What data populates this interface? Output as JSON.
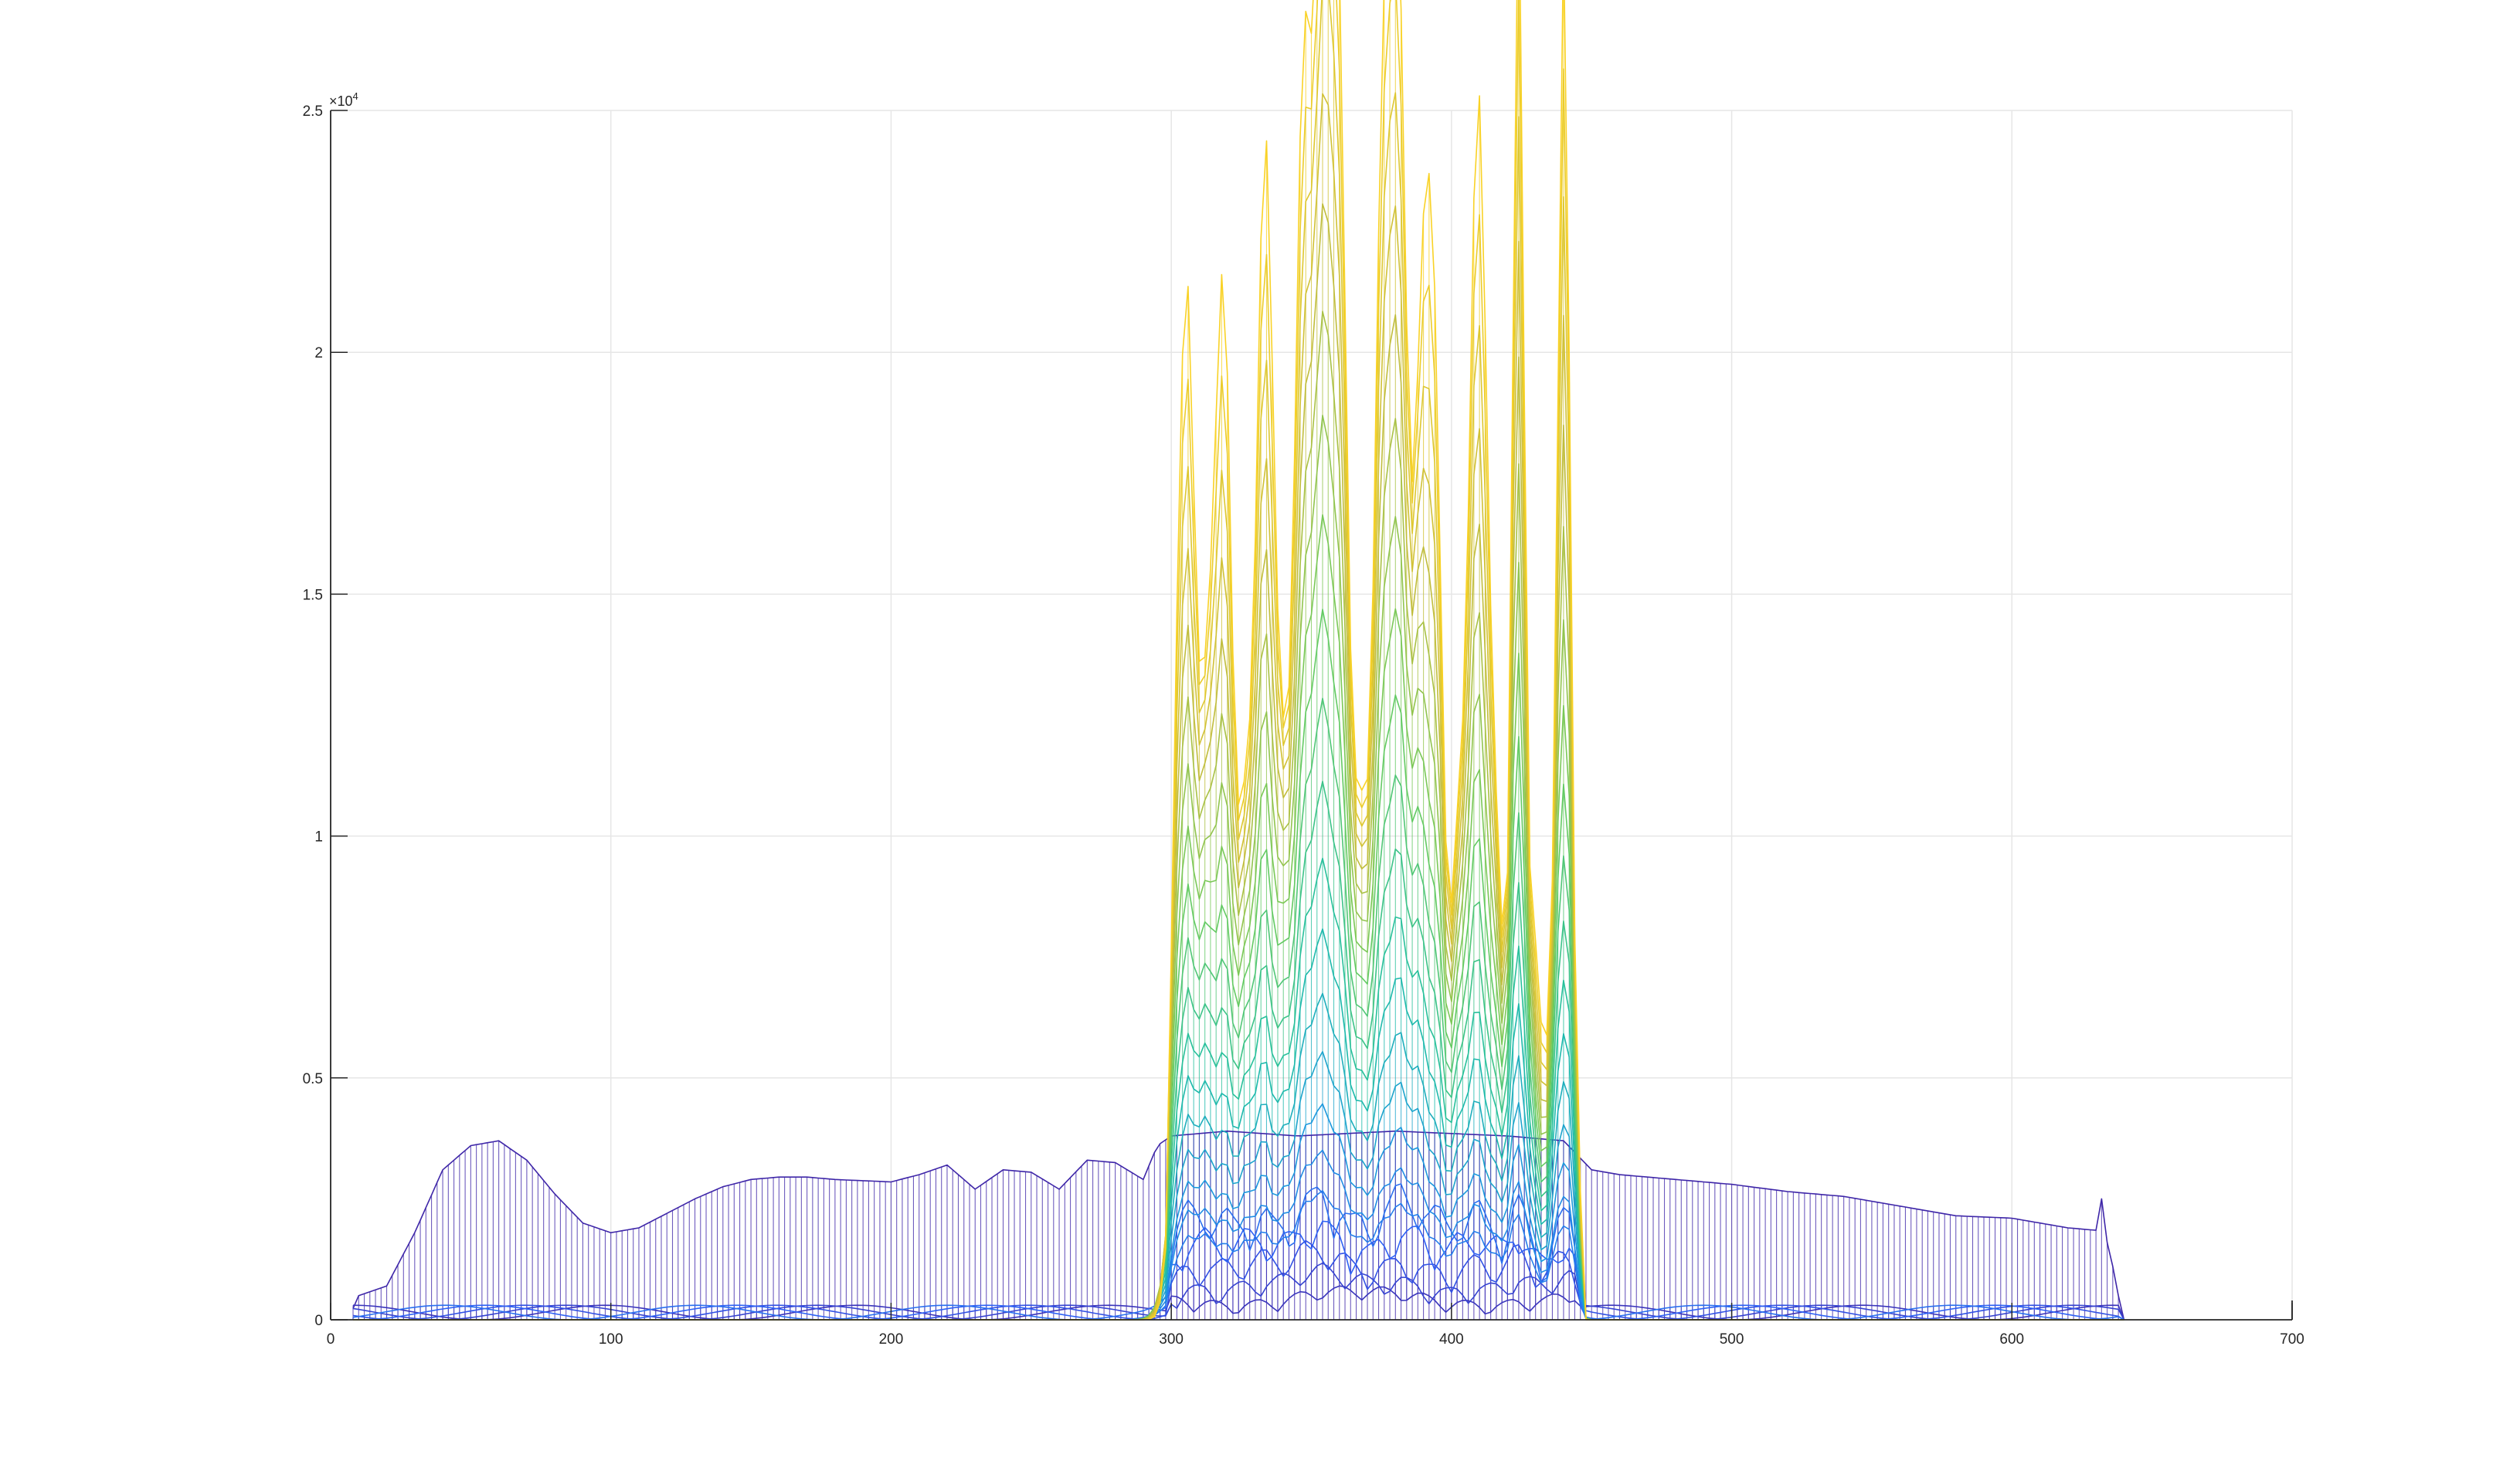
{
  "chart_data": {
    "type": "line",
    "title": "",
    "xlabel": "",
    "ylabel": "",
    "xlim": [
      0,
      700
    ],
    "ylim": [
      0,
      25000
    ],
    "grid": true,
    "legend": "none",
    "x_ticks": [
      "0",
      "100",
      "200",
      "300",
      "400",
      "500",
      "600",
      "700"
    ],
    "y_ticks": [
      "0",
      "0.5",
      "1",
      "1.5",
      "2",
      "2.5"
    ],
    "y_exponent_label": "×10",
    "y_exponent_power": "4",
    "colormap": [
      "#3e26a8",
      "#2f60f6",
      "#1d96e2",
      "#1ebea4",
      "#6acb5d",
      "#c4bc3a",
      "#f9d226"
    ],
    "series_count": 24,
    "x_range": [
      8,
      640
    ],
    "peaks": {
      "x": [
        305,
        318,
        334,
        347,
        354,
        359,
        376,
        381,
        392,
        410,
        424,
        440
      ],
      "y": [
        13000,
        14900,
        16500,
        14800,
        17000,
        17800,
        16000,
        15500,
        17400,
        17400,
        21300,
        21000
      ]
    },
    "baseline_profile": {
      "x": [
        8,
        10,
        20,
        30,
        40,
        50,
        60,
        70,
        80,
        90,
        100,
        110,
        120,
        130,
        140,
        150,
        160,
        170,
        180,
        200,
        210,
        220,
        230,
        240,
        250,
        260,
        270,
        280,
        290,
        295,
        300,
        320,
        345,
        380,
        420,
        440,
        450,
        460,
        480,
        500,
        520,
        540,
        560,
        580,
        600,
        610,
        620,
        630,
        632,
        634,
        636,
        638,
        640
      ],
      "y": [
        0,
        500,
        700,
        1800,
        3100,
        3600,
        3700,
        3300,
        2600,
        2000,
        1800,
        1900,
        2200,
        2500,
        2750,
        2900,
        2950,
        2950,
        2900,
        2850,
        3000,
        3200,
        2700,
        3100,
        3050,
        2700,
        3300,
        3250,
        2900,
        3600,
        3800,
        3900,
        3800,
        3900,
        3800,
        3700,
        3100,
        3000,
        2900,
        2800,
        2650,
        2550,
        2350,
        2150,
        2100,
        2000,
        1900,
        1850,
        2500,
        1600,
        1100,
        500,
        0
      ]
    }
  }
}
